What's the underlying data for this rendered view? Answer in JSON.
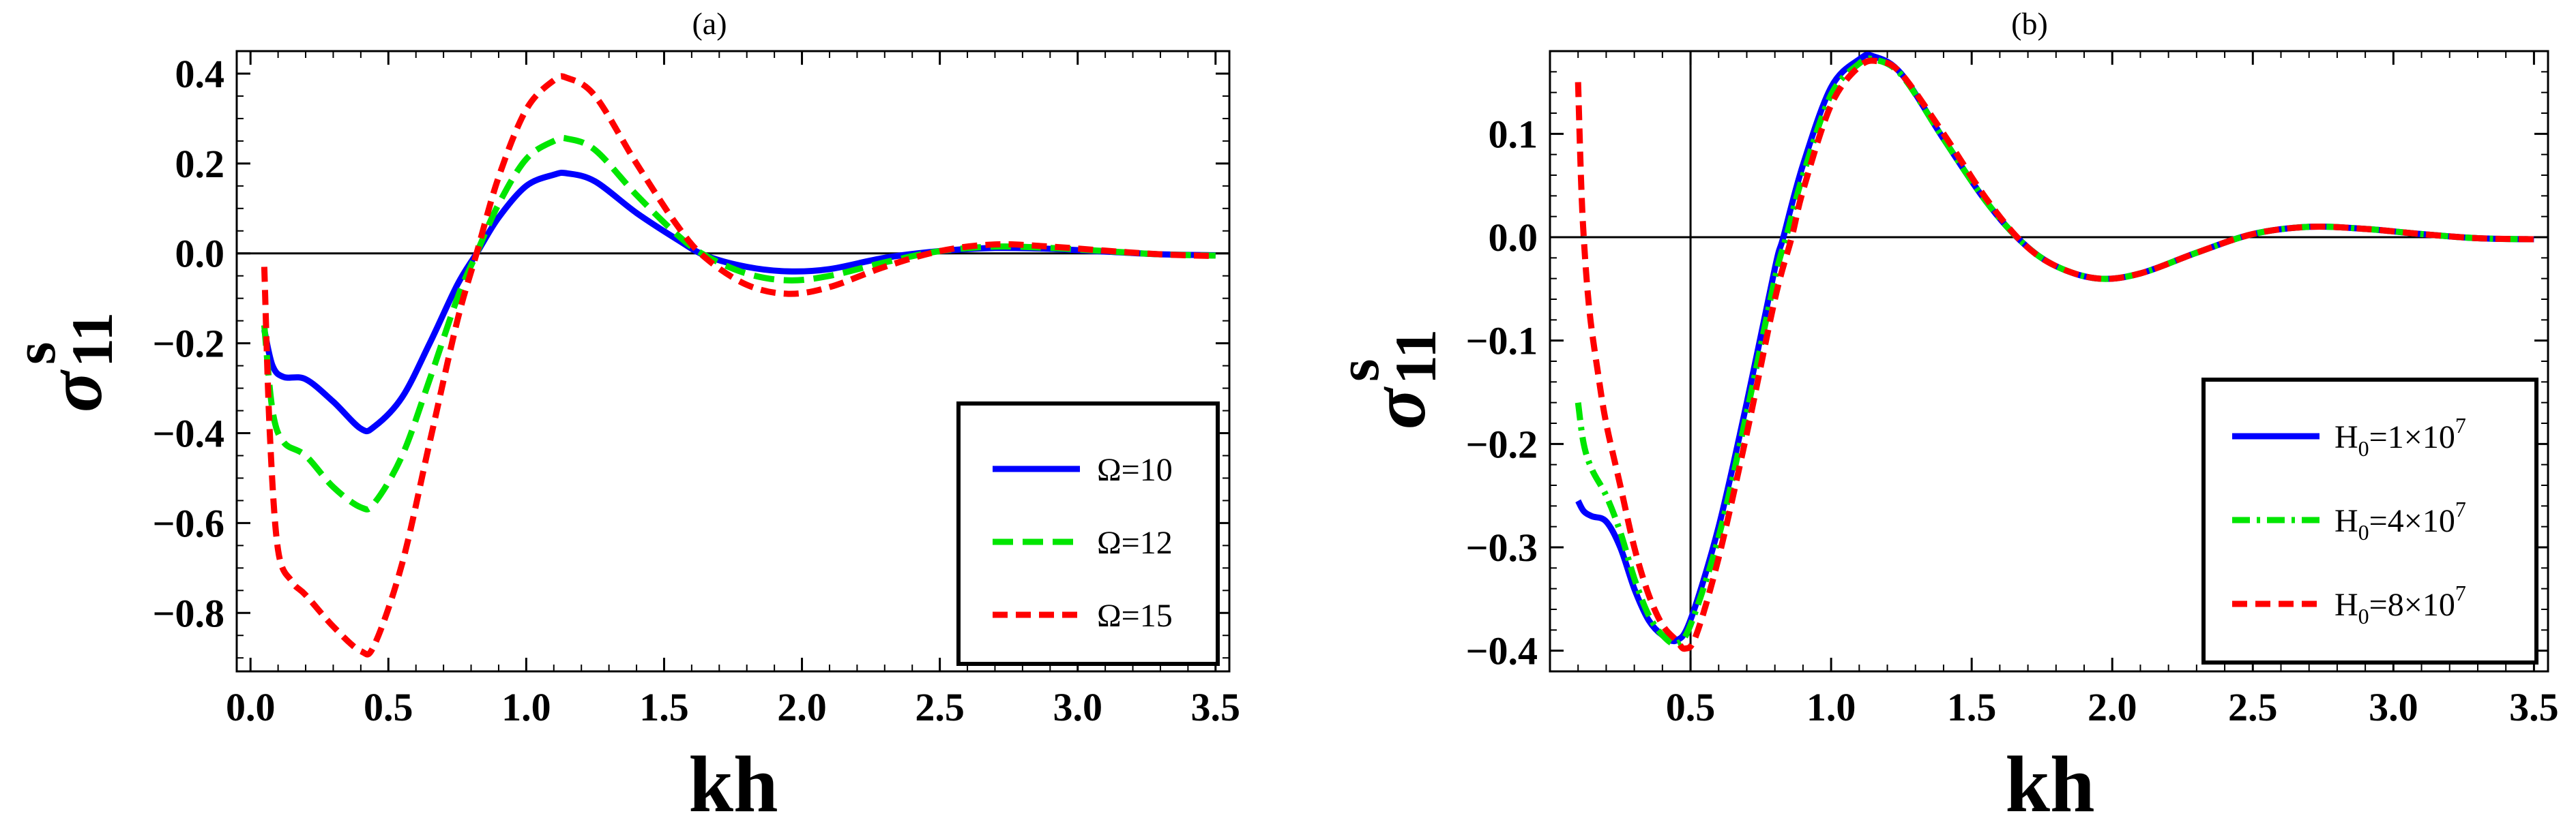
{
  "chart_data": [
    {
      "type": "line",
      "panel_label": "(a)",
      "xlabel": "kh",
      "ylabel": {
        "symbol": "σ",
        "superscript": "s",
        "subscript": "11"
      },
      "xlim": [
        -0.05,
        3.55
      ],
      "ylim": [
        -0.93,
        0.45
      ],
      "xticks": [
        0.0,
        0.5,
        1.0,
        1.5,
        2.0,
        2.5,
        3.0,
        3.5
      ],
      "xtick_labels": [
        "0.0",
        "0.5",
        "1.0",
        "1.5",
        "2.0",
        "2.5",
        "3.0",
        "3.5"
      ],
      "yticks": [
        0.4,
        0.2,
        0.0,
        -0.2,
        -0.4,
        -0.6,
        -0.8
      ],
      "ytick_labels": [
        "0.4",
        "0.2",
        "0.0",
        "−0.2",
        "−0.4",
        "−0.6",
        "−0.8"
      ],
      "zero_line": true,
      "legend_position": "bottom-right",
      "series": [
        {
          "name": "Ω=10",
          "color": "#0000ff",
          "dash": "solid",
          "points": [
            [
              0.05,
              -0.17
            ],
            [
              0.08,
              -0.25
            ],
            [
              0.12,
              -0.275
            ],
            [
              0.2,
              -0.28
            ],
            [
              0.3,
              -0.33
            ],
            [
              0.4,
              -0.39
            ],
            [
              0.45,
              -0.385
            ],
            [
              0.55,
              -0.32
            ],
            [
              0.65,
              -0.2
            ],
            [
              0.75,
              -0.07
            ],
            [
              0.82,
              0.0
            ],
            [
              0.9,
              0.08
            ],
            [
              1.0,
              0.15
            ],
            [
              1.1,
              0.175
            ],
            [
              1.15,
              0.178
            ],
            [
              1.25,
              0.16
            ],
            [
              1.4,
              0.09
            ],
            [
              1.55,
              0.03
            ],
            [
              1.65,
              -0.005
            ],
            [
              1.8,
              -0.03
            ],
            [
              1.95,
              -0.04
            ],
            [
              2.1,
              -0.035
            ],
            [
              2.3,
              -0.01
            ],
            [
              2.5,
              0.005
            ],
            [
              2.7,
              0.012
            ],
            [
              2.9,
              0.01
            ],
            [
              3.1,
              0.004
            ],
            [
              3.3,
              -0.002
            ],
            [
              3.5,
              -0.004
            ]
          ]
        },
        {
          "name": "Ω=12",
          "color": "#00e600",
          "dash": "medium",
          "points": [
            [
              0.05,
              -0.16
            ],
            [
              0.08,
              -0.35
            ],
            [
              0.12,
              -0.42
            ],
            [
              0.2,
              -0.45
            ],
            [
              0.3,
              -0.52
            ],
            [
              0.4,
              -0.565
            ],
            [
              0.45,
              -0.555
            ],
            [
              0.55,
              -0.45
            ],
            [
              0.65,
              -0.28
            ],
            [
              0.75,
              -0.1
            ],
            [
              0.82,
              0.0
            ],
            [
              0.9,
              0.11
            ],
            [
              1.0,
              0.21
            ],
            [
              1.1,
              0.25
            ],
            [
              1.15,
              0.255
            ],
            [
              1.25,
              0.23
            ],
            [
              1.4,
              0.13
            ],
            [
              1.55,
              0.04
            ],
            [
              1.65,
              -0.005
            ],
            [
              1.8,
              -0.045
            ],
            [
              1.95,
              -0.06
            ],
            [
              2.1,
              -0.05
            ],
            [
              2.3,
              -0.02
            ],
            [
              2.5,
              0.005
            ],
            [
              2.7,
              0.015
            ],
            [
              2.9,
              0.012
            ],
            [
              3.1,
              0.005
            ],
            [
              3.3,
              -0.002
            ],
            [
              3.5,
              -0.005
            ]
          ]
        },
        {
          "name": "Ω=15",
          "color": "#ff0000",
          "dash": "short",
          "points": [
            [
              0.05,
              -0.03
            ],
            [
              0.07,
              -0.4
            ],
            [
              0.1,
              -0.66
            ],
            [
              0.15,
              -0.73
            ],
            [
              0.2,
              -0.76
            ],
            [
              0.3,
              -0.83
            ],
            [
              0.4,
              -0.885
            ],
            [
              0.45,
              -0.87
            ],
            [
              0.55,
              -0.69
            ],
            [
              0.65,
              -0.42
            ],
            [
              0.75,
              -0.15
            ],
            [
              0.82,
              0.0
            ],
            [
              0.9,
              0.17
            ],
            [
              1.0,
              0.32
            ],
            [
              1.1,
              0.385
            ],
            [
              1.15,
              0.39
            ],
            [
              1.25,
              0.35
            ],
            [
              1.4,
              0.2
            ],
            [
              1.55,
              0.06
            ],
            [
              1.65,
              -0.01
            ],
            [
              1.8,
              -0.07
            ],
            [
              1.95,
              -0.09
            ],
            [
              2.1,
              -0.075
            ],
            [
              2.3,
              -0.03
            ],
            [
              2.5,
              0.005
            ],
            [
              2.7,
              0.02
            ],
            [
              2.9,
              0.015
            ],
            [
              3.1,
              0.006
            ],
            [
              3.3,
              -0.002
            ],
            [
              3.5,
              -0.006
            ]
          ]
        }
      ]
    },
    {
      "type": "line",
      "panel_label": "(b)",
      "xlabel": "kh",
      "ylabel": {
        "symbol": "σ",
        "superscript": "s",
        "subscript": "11"
      },
      "xlim": [
        0.0,
        3.55
      ],
      "ylim": [
        -0.42,
        0.18
      ],
      "xticks": [
        0.5,
        1.0,
        1.5,
        2.0,
        2.5,
        3.0,
        3.5
      ],
      "xtick_labels": [
        "0.5",
        "1.0",
        "1.5",
        "2.0",
        "2.5",
        "3.0",
        "3.5"
      ],
      "yticks": [
        0.1,
        0.0,
        -0.1,
        -0.2,
        -0.3,
        -0.4
      ],
      "ytick_labels": [
        "0.1",
        "0.0",
        "−0.1",
        "−0.2",
        "−0.3",
        "−0.4"
      ],
      "zero_line": true,
      "vertical_line_x": 0.5,
      "legend_position": "bottom-right",
      "series": [
        {
          "name": "H",
          "name_sub": "0",
          "name_rest": "=1×10",
          "name_sup": "7",
          "color": "#0000ff",
          "dash": "solid",
          "points": [
            [
              0.1,
              -0.255
            ],
            [
              0.12,
              -0.265
            ],
            [
              0.15,
              -0.27
            ],
            [
              0.2,
              -0.275
            ],
            [
              0.25,
              -0.3
            ],
            [
              0.3,
              -0.34
            ],
            [
              0.35,
              -0.37
            ],
            [
              0.4,
              -0.385
            ],
            [
              0.45,
              -0.39
            ],
            [
              0.5,
              -0.37
            ],
            [
              0.6,
              -0.28
            ],
            [
              0.7,
              -0.16
            ],
            [
              0.8,
              -0.03
            ],
            [
              0.83,
              0.0
            ],
            [
              0.9,
              0.07
            ],
            [
              1.0,
              0.145
            ],
            [
              1.1,
              0.172
            ],
            [
              1.15,
              0.175
            ],
            [
              1.25,
              0.158
            ],
            [
              1.4,
              0.095
            ],
            [
              1.55,
              0.035
            ],
            [
              1.68,
              -0.005
            ],
            [
              1.8,
              -0.028
            ],
            [
              1.95,
              -0.04
            ],
            [
              2.1,
              -0.035
            ],
            [
              2.3,
              -0.015
            ],
            [
              2.5,
              0.003
            ],
            [
              2.7,
              0.01
            ],
            [
              2.9,
              0.008
            ],
            [
              3.1,
              0.003
            ],
            [
              3.3,
              -0.001
            ],
            [
              3.5,
              -0.002
            ]
          ]
        },
        {
          "name": "H",
          "name_sub": "0",
          "name_rest": "=4×10",
          "name_sup": "7",
          "color": "#00e600",
          "dash": "dashdot",
          "points": [
            [
              0.1,
              -0.16
            ],
            [
              0.12,
              -0.2
            ],
            [
              0.15,
              -0.225
            ],
            [
              0.2,
              -0.25
            ],
            [
              0.25,
              -0.285
            ],
            [
              0.3,
              -0.33
            ],
            [
              0.35,
              -0.365
            ],
            [
              0.4,
              -0.385
            ],
            [
              0.45,
              -0.393
            ],
            [
              0.5,
              -0.375
            ],
            [
              0.6,
              -0.29
            ],
            [
              0.7,
              -0.17
            ],
            [
              0.8,
              -0.04
            ],
            [
              0.84,
              0.0
            ],
            [
              0.9,
              0.06
            ],
            [
              1.0,
              0.138
            ],
            [
              1.1,
              0.168
            ],
            [
              1.15,
              0.172
            ],
            [
              1.25,
              0.157
            ],
            [
              1.4,
              0.095
            ],
            [
              1.55,
              0.035
            ],
            [
              1.68,
              -0.005
            ],
            [
              1.8,
              -0.028
            ],
            [
              1.95,
              -0.04
            ],
            [
              2.1,
              -0.035
            ],
            [
              2.3,
              -0.015
            ],
            [
              2.5,
              0.003
            ],
            [
              2.7,
              0.01
            ],
            [
              2.9,
              0.008
            ],
            [
              3.1,
              0.003
            ],
            [
              3.3,
              -0.001
            ],
            [
              3.5,
              -0.002
            ]
          ]
        },
        {
          "name": "H",
          "name_sub": "0",
          "name_rest": "=8×10",
          "name_sup": "7",
          "color": "#ff0000",
          "dash": "short",
          "points": [
            [
              0.1,
              0.15
            ],
            [
              0.11,
              0.06
            ],
            [
              0.12,
              0.0
            ],
            [
              0.14,
              -0.07
            ],
            [
              0.17,
              -0.13
            ],
            [
              0.2,
              -0.18
            ],
            [
              0.25,
              -0.24
            ],
            [
              0.3,
              -0.3
            ],
            [
              0.35,
              -0.345
            ],
            [
              0.4,
              -0.375
            ],
            [
              0.45,
              -0.39
            ],
            [
              0.48,
              -0.398
            ],
            [
              0.52,
              -0.385
            ],
            [
              0.6,
              -0.31
            ],
            [
              0.7,
              -0.19
            ],
            [
              0.8,
              -0.06
            ],
            [
              0.86,
              0.0
            ],
            [
              0.9,
              0.045
            ],
            [
              1.0,
              0.128
            ],
            [
              1.1,
              0.165
            ],
            [
              1.17,
              0.17
            ],
            [
              1.25,
              0.158
            ],
            [
              1.4,
              0.1
            ],
            [
              1.55,
              0.038
            ],
            [
              1.68,
              -0.005
            ],
            [
              1.8,
              -0.028
            ],
            [
              1.95,
              -0.04
            ],
            [
              2.1,
              -0.035
            ],
            [
              2.3,
              -0.015
            ],
            [
              2.5,
              0.003
            ],
            [
              2.7,
              0.01
            ],
            [
              2.9,
              0.008
            ],
            [
              3.1,
              0.003
            ],
            [
              3.3,
              -0.001
            ],
            [
              3.5,
              -0.002
            ]
          ]
        }
      ]
    }
  ]
}
